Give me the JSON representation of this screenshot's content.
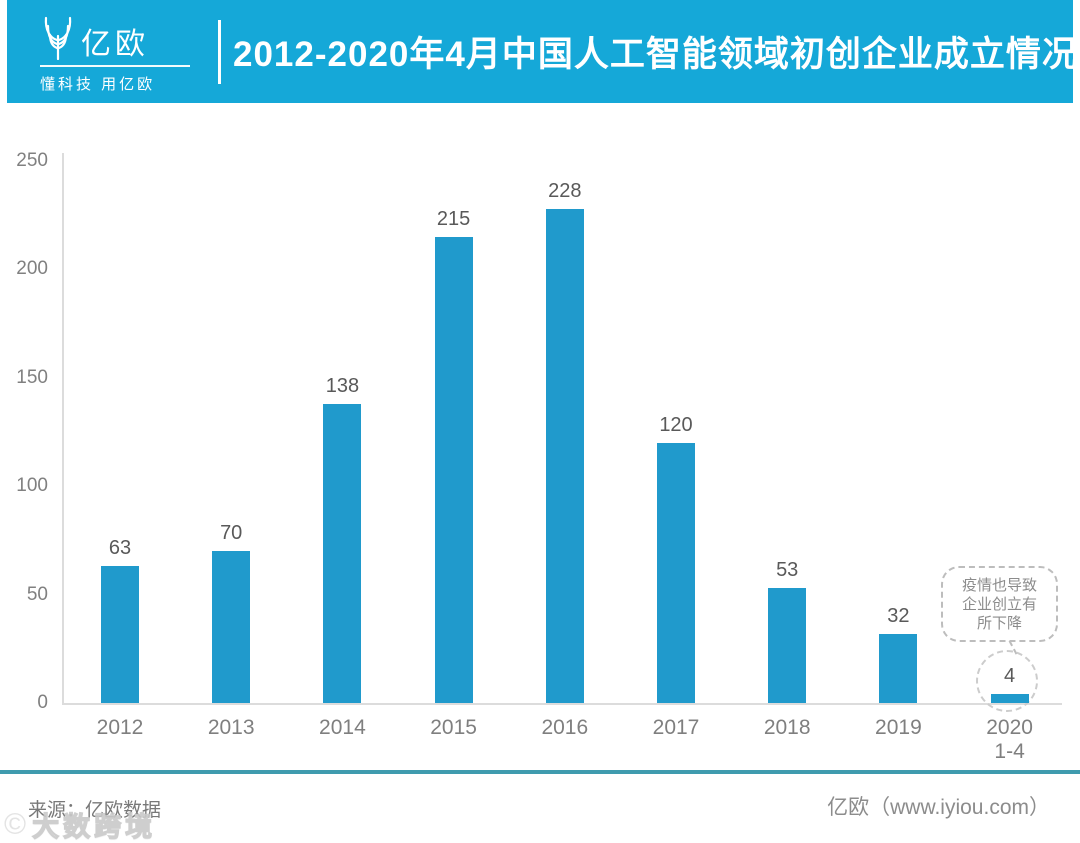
{
  "header": {
    "brand_name": "亿欧",
    "brand_tagline": "懂科技 用亿欧",
    "title": "2012-2020年4月中国人工智能领域初创企业成立情况"
  },
  "chart_data": {
    "type": "bar",
    "title": "2012-2020年4月中国人工智能领域初创企业成立情况",
    "categories": [
      "2012",
      "2013",
      "2014",
      "2015",
      "2016",
      "2017",
      "2018",
      "2019",
      "2020"
    ],
    "sub_labels": [
      "",
      "",
      "",
      "",
      "",
      "",
      "",
      "",
      "1-4"
    ],
    "values": [
      63,
      70,
      138,
      215,
      228,
      120,
      53,
      32,
      4
    ],
    "ylim": [
      0,
      250
    ],
    "yticks": [
      0,
      50,
      100,
      150,
      200,
      250
    ],
    "xlabel": "",
    "ylabel": "",
    "grid": false,
    "legend": false,
    "bar_color": "#209ACC",
    "annotation": "疫情也导致企业创立有所下降"
  },
  "callout": {
    "line1": "疫情也导致",
    "line2": "企业创立有",
    "line3": "所下降"
  },
  "footer": {
    "source": "来源：亿欧数据",
    "credit": "亿欧（www.iyiou.com）",
    "watermark_icon": "©",
    "watermark": "大数跨境"
  },
  "colors": {
    "header_bg": "#15A8D8",
    "bar": "#209ACC",
    "footer_rule": "#3F9BAE",
    "axis": "#dcdcdc"
  }
}
